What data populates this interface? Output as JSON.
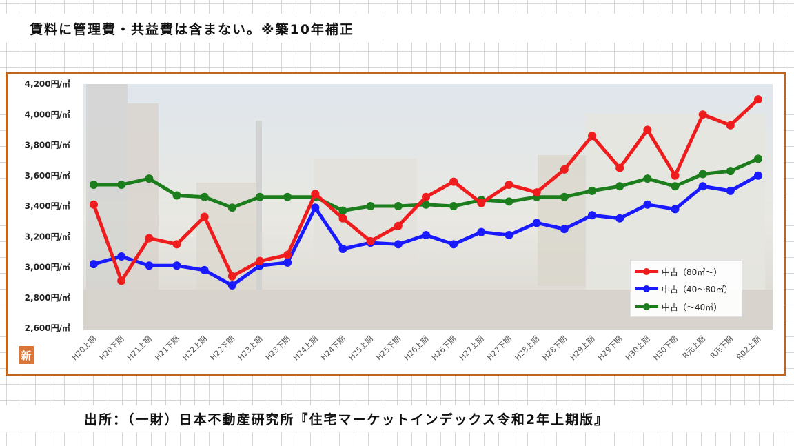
{
  "heading": "賃料に管理費・共益費は含まない。※築10年補正",
  "source": "出所：（一財）日本不動産研究所『住宅マーケットインデックス令和2年上期版』",
  "badge": "新",
  "colors": {
    "frame": "#c0651d",
    "red": "#ee1c1c",
    "blue": "#1a1aff",
    "green": "#1b7d1b"
  },
  "chart_data": {
    "type": "line",
    "categories": [
      "H20上期",
      "H20下期",
      "H21上期",
      "H21下期",
      "H22上期",
      "H22下期",
      "H23上期",
      "H23下期",
      "H24上期",
      "H24下期",
      "H25上期",
      "H25下期",
      "H26上期",
      "H26下期",
      "H27上期",
      "H27下期",
      "H28上期",
      "H28下期",
      "H29上期",
      "H29下期",
      "H30上期",
      "H30下期",
      "R元上期",
      "R元下期",
      "R02上期"
    ],
    "ylim": [
      2600,
      4200
    ],
    "yticks": [
      "2,600円/㎡",
      "2,800円/㎡",
      "3,000円/㎡",
      "3,200円/㎡",
      "3,400円/㎡",
      "3,600円/㎡",
      "3,800円/㎡",
      "4,000円/㎡",
      "4,200円/㎡"
    ],
    "series": [
      {
        "name": "中古（80㎡～）",
        "color": "#ee1c1c",
        "values": [
          3410,
          2910,
          3190,
          3150,
          3330,
          2940,
          3040,
          3080,
          3480,
          3320,
          3170,
          3270,
          3460,
          3560,
          3420,
          3540,
          3490,
          3640,
          3860,
          3650,
          3900,
          3600,
          4000,
          3930,
          4100
        ]
      },
      {
        "name": "中古（40～80㎡）",
        "color": "#1a1aff",
        "values": [
          3020,
          3070,
          3010,
          3010,
          2980,
          2880,
          3010,
          3030,
          3390,
          3120,
          3160,
          3150,
          3210,
          3150,
          3230,
          3210,
          3290,
          3250,
          3340,
          3320,
          3410,
          3380,
          3530,
          3500,
          3600
        ]
      },
      {
        "name": "中古（～40㎡）",
        "color": "#1b7d1b",
        "values": [
          3540,
          3540,
          3580,
          3470,
          3460,
          3390,
          3460,
          3460,
          3460,
          3370,
          3400,
          3400,
          3410,
          3400,
          3440,
          3430,
          3460,
          3460,
          3500,
          3530,
          3580,
          3530,
          3610,
          3630,
          3710
        ]
      }
    ]
  }
}
